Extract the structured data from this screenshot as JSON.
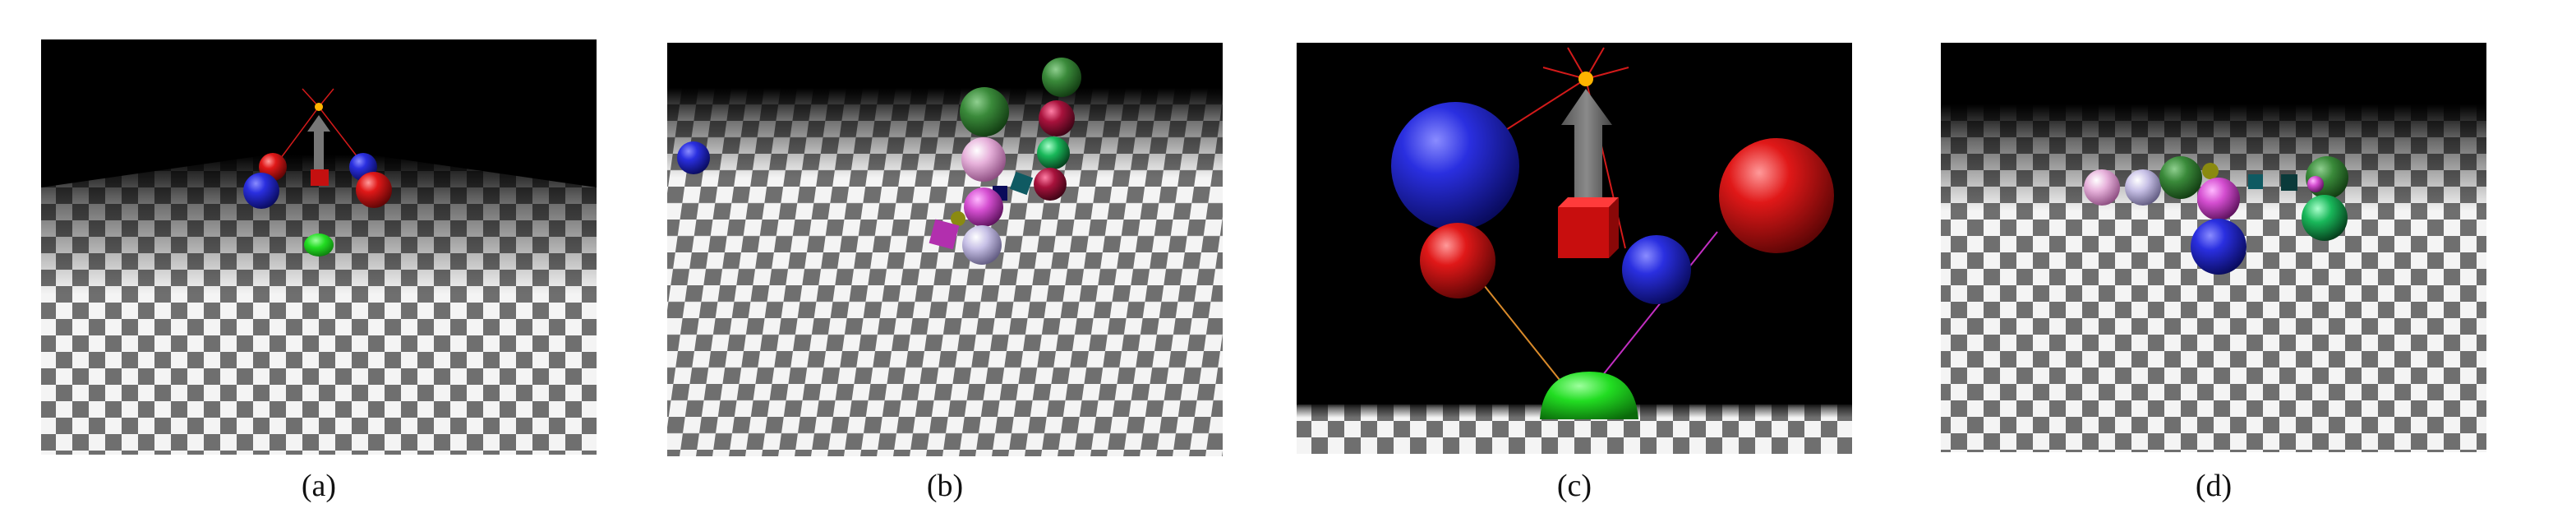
{
  "captions": {
    "a": "(a)",
    "b": "(b)",
    "c": "(c)",
    "d": "(d)"
  },
  "colors": {
    "background": "#000000",
    "checker_dark": "#6f6f6f",
    "checker_light": "#f4f4f4",
    "blue_sphere": "#1a1fc4",
    "red_sphere": "#d81414",
    "green_dome": "#1ee01e",
    "gray_arrow": "#6a6a6a",
    "pink_sphere": "#e9b9de",
    "lavender_sphere": "#c9c3e6",
    "dark_green_sphere": "#2f7a2f",
    "crimson_sphere": "#a3123a",
    "teal_cube": "#0f5a62",
    "light_orange": "#ffb400"
  },
  "panels": [
    {
      "id": "a",
      "scene": "checkered-floor-arrow-spheres"
    },
    {
      "id": "b",
      "scene": "checkered-floor-sphere-cluster"
    },
    {
      "id": "c",
      "scene": "closeup-arrow-spheres-dome"
    },
    {
      "id": "d",
      "scene": "checkered-floor-sphere-ring"
    }
  ]
}
